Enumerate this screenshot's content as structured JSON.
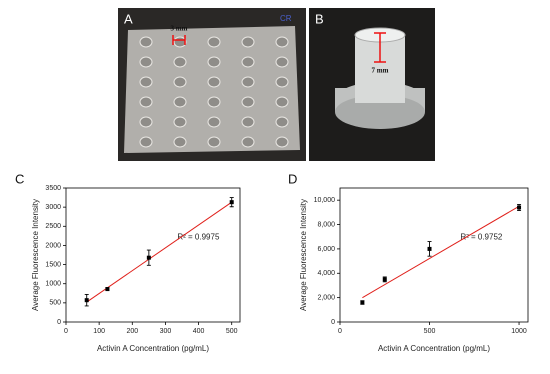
{
  "panels": {
    "a": {
      "label": "A",
      "scale_label": "3 mm",
      "mark": "CR"
    },
    "b": {
      "label": "B",
      "scale_label": "7 mm"
    }
  },
  "chart_data": [
    {
      "type": "scatter",
      "panel_label": "C",
      "x_label": "Activin A Concentration (pg/mL)",
      "y_label": "Average Fluorescence Intensity",
      "x": [
        62.5,
        125,
        250,
        500
      ],
      "values": [
        570,
        860,
        1680,
        3130
      ],
      "errors": [
        150,
        40,
        200,
        120
      ],
      "color": "#000000",
      "fit": {
        "x": [
          62.5,
          500
        ],
        "y": [
          520,
          3130
        ],
        "color": "#e0201b"
      },
      "annotation": "R² = 0.9975",
      "xlim": [
        0,
        525
      ],
      "xticks": [
        0,
        100,
        200,
        300,
        400,
        500
      ],
      "ylim": [
        0,
        3500
      ],
      "yticks": [
        0,
        500,
        1000,
        1500,
        2000,
        2500,
        3000,
        3500
      ]
    },
    {
      "type": "scatter",
      "panel_label": "D",
      "x_label": "Activin A Concentration (pg/mL)",
      "y_label": "Average Fluorescence Intensity",
      "x": [
        125,
        250,
        500,
        1000
      ],
      "values": [
        1600,
        3500,
        6000,
        9400
      ],
      "errors": [
        150,
        200,
        600,
        250
      ],
      "color": "#000000",
      "fit": {
        "x": [
          125,
          1000
        ],
        "y": [
          2000,
          9500
        ],
        "color": "#e0201b"
      },
      "annotation": "R² = 0.9752",
      "xlim": [
        0,
        1050
      ],
      "xticks": [
        0,
        500,
        1000
      ],
      "ylim": [
        0,
        11000
      ],
      "yticks": [
        0,
        {
          "value": 2000,
          "label": "2,000"
        },
        {
          "value": 4000,
          "label": "4,000"
        },
        {
          "value": 6000,
          "label": "6,000"
        },
        {
          "value": 8000,
          "label": "8,000"
        },
        {
          "value": 10000,
          "label": "10,000"
        }
      ]
    }
  ]
}
